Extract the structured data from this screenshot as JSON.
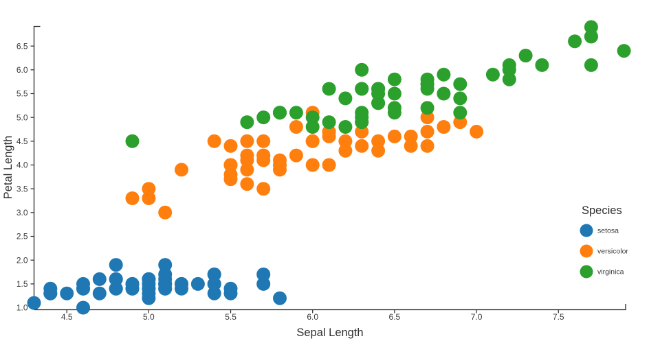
{
  "chart_data": {
    "type": "scatter",
    "title": "",
    "xlabel": "Sepal Length",
    "ylabel": "Petal Length",
    "xlim": [
      4.3,
      7.91
    ],
    "ylim": [
      0.95,
      6.92
    ],
    "x_ticks": [
      4.5,
      5.0,
      5.5,
      6.0,
      6.5,
      7.0,
      7.5
    ],
    "y_ticks": [
      1.0,
      1.5,
      2.0,
      2.5,
      3.0,
      3.5,
      4.0,
      4.5,
      5.0,
      5.5,
      6.0,
      6.5
    ],
    "grid": false,
    "legend": {
      "title": "Species",
      "position": "right-middle"
    },
    "series": [
      {
        "name": "setosa",
        "color": "#1f77b4",
        "points": [
          [
            5.1,
            1.4
          ],
          [
            4.9,
            1.4
          ],
          [
            4.7,
            1.3
          ],
          [
            4.6,
            1.5
          ],
          [
            5.0,
            1.4
          ],
          [
            5.4,
            1.7
          ],
          [
            4.6,
            1.4
          ],
          [
            5.0,
            1.5
          ],
          [
            4.4,
            1.4
          ],
          [
            4.9,
            1.5
          ],
          [
            5.4,
            1.5
          ],
          [
            4.8,
            1.6
          ],
          [
            4.8,
            1.4
          ],
          [
            4.3,
            1.1
          ],
          [
            5.8,
            1.2
          ],
          [
            5.7,
            1.5
          ],
          [
            5.4,
            1.3
          ],
          [
            5.1,
            1.4
          ],
          [
            5.7,
            1.7
          ],
          [
            5.1,
            1.5
          ],
          [
            5.4,
            1.7
          ],
          [
            5.1,
            1.5
          ],
          [
            4.6,
            1.0
          ],
          [
            5.1,
            1.7
          ],
          [
            4.8,
            1.9
          ],
          [
            5.0,
            1.6
          ],
          [
            5.0,
            1.6
          ],
          [
            5.2,
            1.5
          ],
          [
            5.2,
            1.4
          ],
          [
            4.7,
            1.6
          ],
          [
            4.8,
            1.6
          ],
          [
            5.4,
            1.5
          ],
          [
            5.2,
            1.5
          ],
          [
            5.5,
            1.4
          ],
          [
            4.9,
            1.5
          ],
          [
            5.0,
            1.2
          ],
          [
            5.5,
            1.3
          ],
          [
            4.9,
            1.4
          ],
          [
            4.4,
            1.3
          ],
          [
            5.1,
            1.5
          ],
          [
            5.0,
            1.3
          ],
          [
            4.5,
            1.3
          ],
          [
            4.4,
            1.3
          ],
          [
            5.0,
            1.6
          ],
          [
            5.1,
            1.9
          ],
          [
            4.8,
            1.4
          ],
          [
            5.1,
            1.6
          ],
          [
            4.6,
            1.4
          ],
          [
            5.3,
            1.5
          ],
          [
            5.0,
            1.4
          ]
        ]
      },
      {
        "name": "versicolor",
        "color": "#ff7f0e",
        "points": [
          [
            7.0,
            4.7
          ],
          [
            6.4,
            4.5
          ],
          [
            6.9,
            4.9
          ],
          [
            5.5,
            4.0
          ],
          [
            6.5,
            4.6
          ],
          [
            5.7,
            4.5
          ],
          [
            6.3,
            4.7
          ],
          [
            4.9,
            3.3
          ],
          [
            6.6,
            4.6
          ],
          [
            5.2,
            3.9
          ],
          [
            5.0,
            3.5
          ],
          [
            5.9,
            4.2
          ],
          [
            6.0,
            4.0
          ],
          [
            6.1,
            4.7
          ],
          [
            5.6,
            3.6
          ],
          [
            6.7,
            4.4
          ],
          [
            5.6,
            4.5
          ],
          [
            5.8,
            4.1
          ],
          [
            6.2,
            4.5
          ],
          [
            5.6,
            3.9
          ],
          [
            5.9,
            4.8
          ],
          [
            6.1,
            4.0
          ],
          [
            6.3,
            4.9
          ],
          [
            6.1,
            4.7
          ],
          [
            6.4,
            4.3
          ],
          [
            6.6,
            4.4
          ],
          [
            6.8,
            4.8
          ],
          [
            6.7,
            5.0
          ],
          [
            6.0,
            4.5
          ],
          [
            5.7,
            3.5
          ],
          [
            5.5,
            3.8
          ],
          [
            5.5,
            3.7
          ],
          [
            5.8,
            3.9
          ],
          [
            6.0,
            5.1
          ],
          [
            5.4,
            4.5
          ],
          [
            6.0,
            4.5
          ],
          [
            6.7,
            4.7
          ],
          [
            6.3,
            4.4
          ],
          [
            5.6,
            4.1
          ],
          [
            5.5,
            4.0
          ],
          [
            5.5,
            4.4
          ],
          [
            6.1,
            4.6
          ],
          [
            5.8,
            4.0
          ],
          [
            5.0,
            3.3
          ],
          [
            5.6,
            4.2
          ],
          [
            5.7,
            4.2
          ],
          [
            5.7,
            4.2
          ],
          [
            6.2,
            4.3
          ],
          [
            5.1,
            3.0
          ],
          [
            5.7,
            4.1
          ]
        ]
      },
      {
        "name": "virginica",
        "color": "#2ca02c",
        "points": [
          [
            6.3,
            6.0
          ],
          [
            5.8,
            5.1
          ],
          [
            7.1,
            5.9
          ],
          [
            6.3,
            5.6
          ],
          [
            6.5,
            5.8
          ],
          [
            7.6,
            6.6
          ],
          [
            4.9,
            4.5
          ],
          [
            7.3,
            6.3
          ],
          [
            6.7,
            5.8
          ],
          [
            7.2,
            6.1
          ],
          [
            6.5,
            5.1
          ],
          [
            6.4,
            5.3
          ],
          [
            6.8,
            5.5
          ],
          [
            5.7,
            5.0
          ],
          [
            5.8,
            5.1
          ],
          [
            6.4,
            5.3
          ],
          [
            6.5,
            5.5
          ],
          [
            7.7,
            6.7
          ],
          [
            7.7,
            6.9
          ],
          [
            6.0,
            5.0
          ],
          [
            6.9,
            5.7
          ],
          [
            5.6,
            4.9
          ],
          [
            7.7,
            6.7
          ],
          [
            6.3,
            4.9
          ],
          [
            6.7,
            5.7
          ],
          [
            7.2,
            6.0
          ],
          [
            6.2,
            4.8
          ],
          [
            6.1,
            4.9
          ],
          [
            6.4,
            5.6
          ],
          [
            7.2,
            5.8
          ],
          [
            7.4,
            6.1
          ],
          [
            7.9,
            6.4
          ],
          [
            6.4,
            5.6
          ],
          [
            6.3,
            5.1
          ],
          [
            6.1,
            5.6
          ],
          [
            7.7,
            6.1
          ],
          [
            6.3,
            5.6
          ],
          [
            6.4,
            5.5
          ],
          [
            6.0,
            4.8
          ],
          [
            6.9,
            5.4
          ],
          [
            6.7,
            5.6
          ],
          [
            6.9,
            5.1
          ],
          [
            5.8,
            5.1
          ],
          [
            6.8,
            5.9
          ],
          [
            6.7,
            5.7
          ],
          [
            6.7,
            5.2
          ],
          [
            6.3,
            5.0
          ],
          [
            6.5,
            5.2
          ],
          [
            6.2,
            5.4
          ],
          [
            5.9,
            5.1
          ]
        ]
      }
    ]
  }
}
